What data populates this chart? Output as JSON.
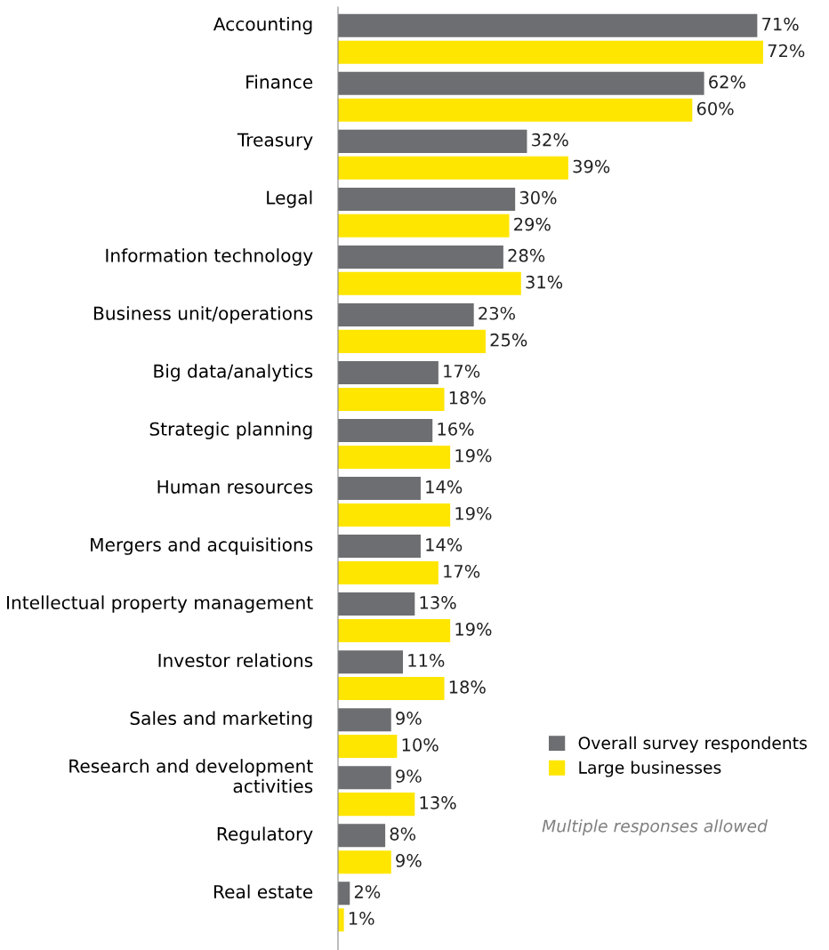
{
  "chart_data": {
    "type": "bar",
    "orientation": "horizontal",
    "tick_labels": "y",
    "legend": "right",
    "grid": false,
    "categories": [
      "Accounting",
      "Finance",
      "Treasury",
      "Legal",
      "Information technology",
      "Business unit/operations",
      "Big data/analytics",
      "Strategic planning",
      "Human resources",
      "Mergers and acquisitions",
      "Intellectual property management",
      "Investor relations",
      "Sales and marketing",
      "Research and development\nactivities",
      "Regulatory",
      "Real estate"
    ],
    "series": [
      {
        "name": "Overall survey respondents",
        "color": "#6d6e71",
        "values": [
          71,
          62,
          32,
          30,
          28,
          23,
          17,
          16,
          14,
          14,
          13,
          11,
          9,
          9,
          8,
          2
        ],
        "value_labels": [
          "71%",
          "62%",
          "32%",
          "30%",
          "28%",
          "23%",
          "17%",
          "16%",
          "14%",
          "14%",
          "13%",
          "11%",
          "9%",
          "9%",
          "8%",
          "2%"
        ]
      },
      {
        "name": "Large businesses",
        "color": "#ffe600",
        "values": [
          72,
          60,
          39,
          29,
          31,
          25,
          18,
          19,
          19,
          17,
          19,
          18,
          10,
          13,
          9,
          1
        ],
        "value_labels": [
          "72%",
          "60%",
          "39%",
          "29%",
          "31%",
          "25%",
          "18%",
          "19%",
          "19%",
          "17%",
          "19%",
          "18%",
          "10%",
          "13%",
          "9%",
          "1%"
        ]
      }
    ],
    "annotations": [
      "Multiple responses allowed"
    ]
  }
}
